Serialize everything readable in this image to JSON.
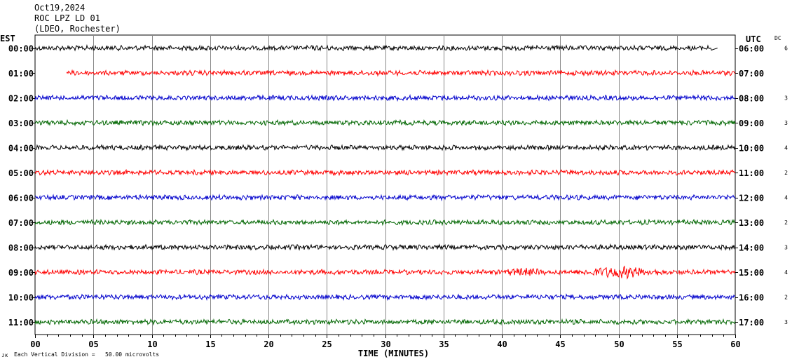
{
  "header": {
    "date": "Oct19,2024",
    "station": "ROC LPZ LD 01",
    "network": "(LDEO, Rochester)"
  },
  "tz_left": "EST",
  "tz_right": "UTC",
  "dc_label": "DC",
  "footer": {
    "mark": "ᴊᴋ",
    "scale_note": "Each Vertical Division =   50.00 microvolts"
  },
  "colors": {
    "black": "#000000",
    "red": "#ff0000",
    "blue": "#0000cc",
    "green": "#006600"
  },
  "chart_data": {
    "type": "line",
    "title": "",
    "xlabel": "TIME (MINUTES)",
    "ylabel": "",
    "xlim": [
      0,
      60
    ],
    "x_ticks": [
      "00",
      "05",
      "10",
      "15",
      "20",
      "25",
      "30",
      "35",
      "40",
      "45",
      "50",
      "55",
      "60"
    ],
    "grid": true,
    "rows": [
      {
        "est": "00:00",
        "utc": "06:00",
        "dc": "6",
        "color": "#000000",
        "start": 0,
        "end": 58,
        "amp": 3
      },
      {
        "est": "01:00",
        "utc": "07:00",
        "dc": "",
        "color": "#ff0000",
        "start": 2.7,
        "end": 60,
        "amp": 3
      },
      {
        "est": "02:00",
        "utc": "08:00",
        "dc": "3",
        "color": "#0000cc",
        "start": 0,
        "end": 60,
        "amp": 3
      },
      {
        "est": "03:00",
        "utc": "09:00",
        "dc": "3",
        "color": "#006600",
        "start": 0,
        "end": 60,
        "amp": 3
      },
      {
        "est": "04:00",
        "utc": "10:00",
        "dc": "4",
        "color": "#000000",
        "start": 0,
        "end": 60,
        "amp": 3
      },
      {
        "est": "05:00",
        "utc": "11:00",
        "dc": "2",
        "color": "#ff0000",
        "start": 0,
        "end": 60,
        "amp": 3
      },
      {
        "est": "06:00",
        "utc": "12:00",
        "dc": "4",
        "color": "#0000cc",
        "start": 0,
        "end": 60,
        "amp": 3
      },
      {
        "est": "07:00",
        "utc": "13:00",
        "dc": "2",
        "color": "#006600",
        "start": 0,
        "end": 60,
        "amp": 3
      },
      {
        "est": "08:00",
        "utc": "14:00",
        "dc": "3",
        "color": "#000000",
        "start": 0,
        "end": 60,
        "amp": 3
      },
      {
        "est": "09:00",
        "utc": "15:00",
        "dc": "4",
        "color": "#ff0000",
        "start": 0,
        "end": 60,
        "amp": 3,
        "bursts": [
          {
            "x0": 40,
            "x1": 44,
            "amp": 6
          },
          {
            "x0": 46.5,
            "x1": 54,
            "amp": 8
          }
        ]
      },
      {
        "est": "10:00",
        "utc": "16:00",
        "dc": "2",
        "color": "#0000cc",
        "start": 0,
        "end": 60,
        "amp": 3
      },
      {
        "est": "11:00",
        "utc": "17:00",
        "dc": "3",
        "color": "#006600",
        "start": 0,
        "end": 60,
        "amp": 3
      }
    ]
  }
}
